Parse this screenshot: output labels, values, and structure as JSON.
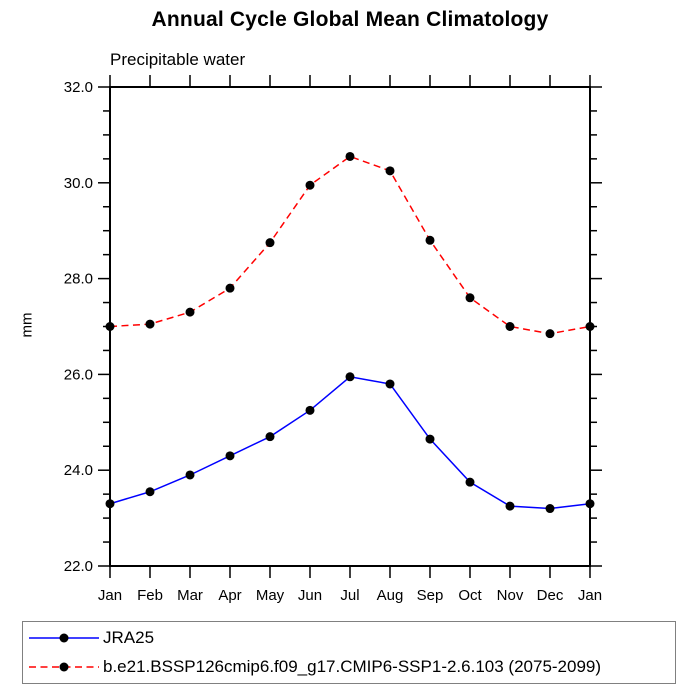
{
  "page": {
    "background": "#ffffff"
  },
  "chart_data": {
    "type": "line",
    "title": "Annual Cycle Global Mean Climatology",
    "subtitle": "Precipitable water",
    "ylabel": "mm",
    "ylim": [
      22.0,
      32.0
    ],
    "ytick_major_interval": 2.0,
    "ytick_minor_interval": 0.5,
    "ytick_labels": [
      "22.0",
      "24.0",
      "26.0",
      "28.0",
      "30.0",
      "32.0"
    ],
    "grid": false,
    "legend_position": "bottom-left-box",
    "axis_color": "#000000",
    "categories": [
      "Jan",
      "Feb",
      "Mar",
      "Apr",
      "May",
      "Jun",
      "Jul",
      "Aug",
      "Sep",
      "Oct",
      "Nov",
      "Dec",
      "Jan"
    ],
    "series": [
      {
        "name": "JRA25",
        "color": "#0000ff",
        "line_style": "solid",
        "marker": "filled-circle",
        "marker_color": "#000000",
        "values": [
          23.3,
          23.55,
          23.9,
          24.3,
          24.7,
          25.25,
          25.95,
          25.8,
          24.65,
          23.75,
          23.25,
          23.2,
          23.3
        ]
      },
      {
        "name": "b.e21.BSSP126cmip6.f09_g17.CMIP6-SSP1-2.6.103 (2075-2099)",
        "color": "#ff0000",
        "line_style": "dashed",
        "marker": "filled-circle",
        "marker_color": "#000000",
        "values": [
          27.0,
          27.05,
          27.3,
          27.8,
          28.75,
          29.95,
          30.55,
          30.25,
          28.8,
          27.6,
          27.0,
          26.85,
          27.0
        ]
      }
    ]
  }
}
